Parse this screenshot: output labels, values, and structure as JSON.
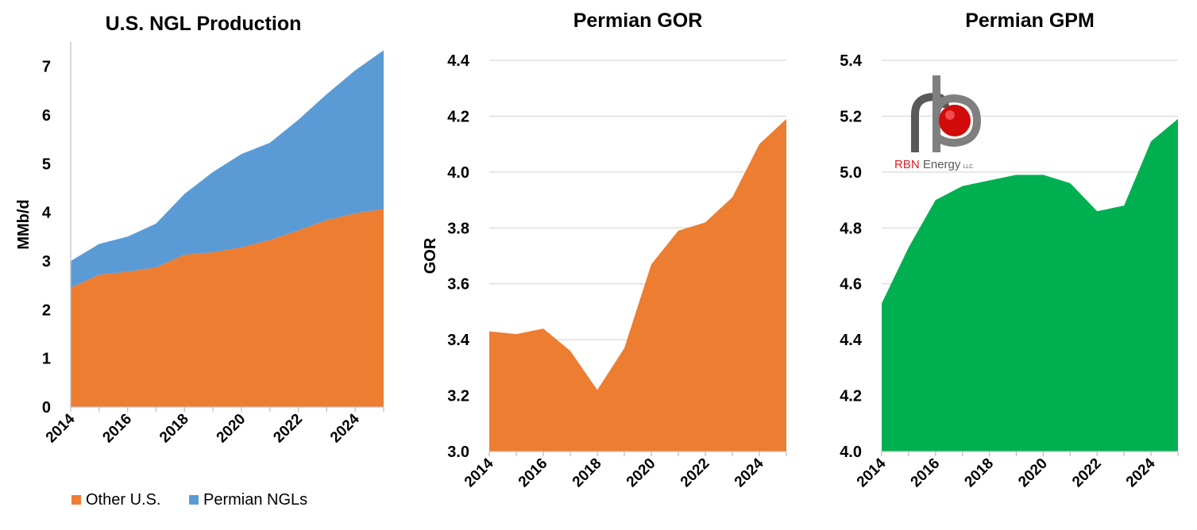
{
  "chart_data": [
    {
      "type": "area",
      "stacked": true,
      "title": "U.S. NGL Production",
      "xlabel": "",
      "ylabel": "MMb/d",
      "x": [
        2014,
        2015,
        2016,
        2017,
        2018,
        2019,
        2020,
        2021,
        2022,
        2023,
        2024,
        2025
      ],
      "xtick_labels": [
        "2014",
        "2016",
        "2018",
        "2020",
        "2022",
        "2024"
      ],
      "ylim": [
        0,
        7.5
      ],
      "yticks": [
        0,
        1,
        2,
        3,
        4,
        5,
        6,
        7
      ],
      "ytick_labels": [
        "0",
        "1",
        "2",
        "3",
        "4",
        "5",
        "6",
        "7"
      ],
      "grid": false,
      "legend_position": "bottom",
      "series": [
        {
          "name": "Other U.S.",
          "color": "#ed7d31",
          "values": [
            2.45,
            2.72,
            2.78,
            2.87,
            3.13,
            3.18,
            3.28,
            3.43,
            3.63,
            3.84,
            3.98,
            4.07
          ]
        },
        {
          "name": "Permian NGLs",
          "color": "#5b9bd5",
          "values": [
            0.55,
            0.63,
            0.72,
            0.9,
            1.25,
            1.65,
            1.92,
            2.0,
            2.27,
            2.59,
            2.94,
            3.26
          ]
        }
      ]
    },
    {
      "type": "area",
      "title": "Permian GOR",
      "xlabel": "",
      "ylabel": "GOR",
      "x": [
        2014,
        2015,
        2016,
        2017,
        2018,
        2019,
        2020,
        2021,
        2022,
        2023,
        2024,
        2025
      ],
      "xtick_labels": [
        "2014",
        "2016",
        "2018",
        "2020",
        "2022",
        "2024"
      ],
      "ylim": [
        3.0,
        4.4
      ],
      "yticks": [
        3.0,
        3.2,
        3.4,
        3.6,
        3.8,
        4.0,
        4.2,
        4.4
      ],
      "ytick_labels": [
        "3.0",
        "3.2",
        "3.4",
        "3.6",
        "3.8",
        "4.0",
        "4.2",
        "4.4"
      ],
      "grid": true,
      "series": [
        {
          "name": "Permian GOR",
          "color": "#ed7d31",
          "values": [
            3.43,
            3.42,
            3.44,
            3.36,
            3.22,
            3.37,
            3.67,
            3.79,
            3.82,
            3.91,
            4.1,
            4.19
          ]
        }
      ]
    },
    {
      "type": "area",
      "title": "Permian GPM",
      "xlabel": "",
      "ylabel": "",
      "x": [
        2014,
        2015,
        2016,
        2017,
        2018,
        2019,
        2020,
        2021,
        2022,
        2023,
        2024,
        2025
      ],
      "xtick_labels": [
        "2014",
        "2016",
        "2018",
        "2020",
        "2022",
        "2024"
      ],
      "ylim": [
        4.0,
        5.4
      ],
      "yticks": [
        4.0,
        4.2,
        4.4,
        4.6,
        4.8,
        5.0,
        5.2,
        5.4
      ],
      "ytick_labels": [
        "4.0",
        "4.2",
        "4.4",
        "4.6",
        "4.8",
        "5.0",
        "5.2",
        "5.4"
      ],
      "grid": true,
      "series": [
        {
          "name": "Permian GPM",
          "color": "#00b050",
          "values": [
            4.53,
            4.73,
            4.9,
            4.95,
            4.97,
            4.99,
            4.99,
            4.96,
            4.86,
            4.88,
            5.11,
            5.19
          ]
        }
      ]
    }
  ],
  "logo": {
    "name": "RBN Energy LLC",
    "text_red": "RBN",
    "text_dark": " Energy",
    "text_small": "LLC",
    "color_red": "#e31b23",
    "color_dark": "#595959"
  }
}
